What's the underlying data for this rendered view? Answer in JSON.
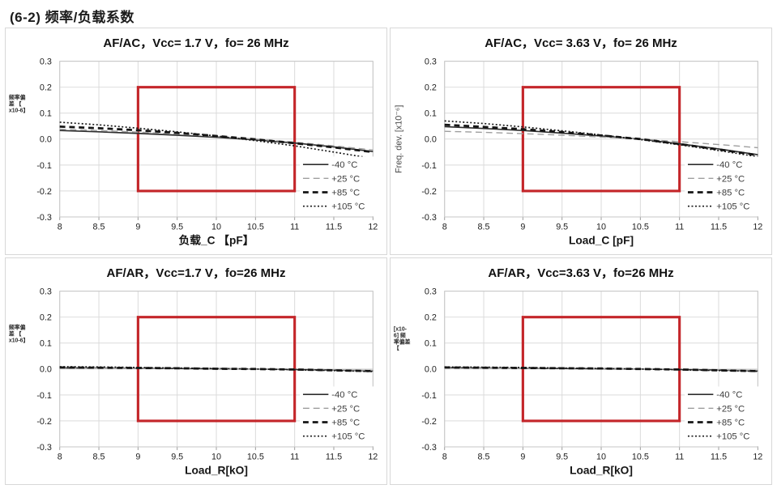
{
  "page_title": "(6-2)  频率/负载系数",
  "colors": {
    "spec_box": "#C4262A",
    "grid": "#DADADA",
    "plot_border": "#C6C6C6",
    "tick_text": "#222222",
    "legend_text": "#3D3D3D",
    "title_text": "#101010"
  },
  "legend": {
    "position": "inside-bottom-right",
    "items": [
      {
        "label": "-40 °C",
        "stroke": "#2E2E2E",
        "width": 1.7,
        "dash": ""
      },
      {
        "label": "+25 °C",
        "stroke": "#9E9E9E",
        "width": 1.4,
        "dash": "8 5"
      },
      {
        "label": "+85 °C",
        "stroke": "#151515",
        "width": 2.8,
        "dash": "7 5"
      },
      {
        "label": "+105 °C",
        "stroke": "#151515",
        "width": 1.7,
        "dash": "2 2.6"
      }
    ]
  },
  "chart_data": [
    {
      "type": "line",
      "title": "AF/AC，Vcc= 1.7 V，fo= 26 MHz",
      "xlabel": "负载_C 【pF】",
      "ylabel": "频率偏差【x10-6】",
      "ylabel_render": {
        "kind": "tiny-stack",
        "lines": [
          "频率偏",
          "差 【",
          "x10-6】"
        ],
        "y0": 58
      },
      "xlim": [
        8,
        12
      ],
      "ylim": [
        -0.3,
        0.3
      ],
      "grid": true,
      "x_ticks": [
        "8",
        "8.5",
        "9",
        "9.5",
        "10",
        "10.5",
        "11",
        "11.5",
        "12"
      ],
      "y_ticks": [
        "0.3",
        "0.2",
        "0.1",
        "0.0",
        "-0.1",
        "-0.2",
        "-0.3"
      ],
      "x": [
        8,
        8.5,
        9,
        9.5,
        10,
        10.5,
        11,
        11.5,
        12
      ],
      "spec_box": {
        "x": [
          9,
          11
        ],
        "y": [
          -0.2,
          0.2
        ]
      },
      "smudge": false,
      "series": [
        {
          "name": "-40 °C",
          "values": [
            0.033,
            0.028,
            0.022,
            0.015,
            0.007,
            -0.003,
            -0.015,
            -0.03,
            -0.048
          ]
        },
        {
          "name": "+25 °C",
          "values": [
            0.038,
            0.033,
            0.027,
            0.019,
            0.01,
            0.0,
            -0.012,
            -0.026,
            -0.042
          ]
        },
        {
          "name": "+85 °C",
          "values": [
            0.048,
            0.042,
            0.034,
            0.024,
            0.012,
            -0.001,
            -0.016,
            -0.032,
            -0.05
          ]
        },
        {
          "name": "+105 °C",
          "values": [
            0.065,
            0.055,
            0.042,
            0.028,
            0.012,
            -0.006,
            -0.026,
            -0.05,
            -0.075
          ]
        }
      ]
    },
    {
      "type": "line",
      "title": "AF/AC，Vcc= 3.63 V，fo= 26 MHz",
      "xlabel": "Load_C [pF]",
      "ylabel": "Freq. dev. [x10⁻⁶]",
      "ylabel_render": {
        "kind": "rotated"
      },
      "xlim": [
        8,
        12
      ],
      "ylim": [
        -0.3,
        0.3
      ],
      "grid": true,
      "x_ticks": [
        "8",
        "8.5",
        "9",
        "9.5",
        "10",
        "10.5",
        "11",
        "11.5",
        "12"
      ],
      "y_ticks": [
        "0.3",
        "0.2",
        "0.1",
        "0.0",
        "-0.1",
        "-0.2",
        "-0.3"
      ],
      "x": [
        8,
        8.5,
        9,
        9.5,
        10,
        10.5,
        11,
        11.5,
        12
      ],
      "spec_box": {
        "x": [
          9,
          11
        ],
        "y": [
          -0.2,
          0.2
        ]
      },
      "smudge": false,
      "series": [
        {
          "name": "-40 °C",
          "values": [
            0.048,
            0.041,
            0.033,
            0.023,
            0.012,
            0.0,
            -0.018,
            -0.038,
            -0.06
          ]
        },
        {
          "name": "+25 °C",
          "values": [
            0.03,
            0.026,
            0.021,
            0.015,
            0.008,
            0.0,
            -0.01,
            -0.021,
            -0.033
          ]
        },
        {
          "name": "+85 °C",
          "values": [
            0.055,
            0.047,
            0.038,
            0.027,
            0.014,
            0.0,
            -0.019,
            -0.04,
            -0.062
          ]
        },
        {
          "name": "+105 °C",
          "values": [
            0.07,
            0.06,
            0.047,
            0.032,
            0.016,
            -0.002,
            -0.022,
            -0.044,
            -0.068
          ]
        }
      ]
    },
    {
      "type": "line",
      "title": "AF/AR，Vcc=1.7 V，fo=26 MHz",
      "xlabel": "Load_R[kO]",
      "ylabel": "频率偏差【x10-6】",
      "ylabel_render": {
        "kind": "tiny-stack",
        "lines": [
          "频率偏",
          "差 【",
          "x10-6】"
        ],
        "y0": 58
      },
      "xlim": [
        8,
        12
      ],
      "ylim": [
        -0.3,
        0.3
      ],
      "grid": true,
      "x_ticks": [
        "8",
        "8.5",
        "9",
        "9.5",
        "10",
        "10.5",
        "11",
        "11.5",
        "12"
      ],
      "y_ticks": [
        "0.3",
        "0.2",
        "0.1",
        "0.0",
        "-0.1",
        "-0.2",
        "-0.3"
      ],
      "x": [
        8,
        8.5,
        9,
        9.5,
        10,
        10.5,
        11,
        11.5,
        12
      ],
      "spec_box": {
        "x": [
          9,
          11
        ],
        "y": [
          -0.2,
          0.2
        ]
      },
      "smudge": true,
      "series": [
        {
          "name": "-40 °C",
          "values": [
            0.004,
            0.004,
            0.003,
            0.002,
            0.001,
            0.0,
            -0.002,
            -0.004,
            -0.007
          ]
        },
        {
          "name": "+25 °C",
          "values": [
            0.003,
            0.003,
            0.002,
            0.002,
            0.001,
            0.0,
            -0.001,
            -0.003,
            -0.005
          ]
        },
        {
          "name": "+85 °C",
          "values": [
            0.006,
            0.005,
            0.004,
            0.003,
            0.001,
            0.0,
            -0.002,
            -0.005,
            -0.008
          ]
        },
        {
          "name": "+105 °C",
          "values": [
            0.009,
            0.008,
            0.006,
            0.004,
            0.002,
            0.0,
            -0.003,
            -0.006,
            -0.01
          ]
        }
      ]
    },
    {
      "type": "line",
      "title": "AF/AR，Vcc=3.63 V，fo=26 MHz",
      "xlabel": "Load_R[kO]",
      "ylabel": "[x10-6] 频率偏差【",
      "ylabel_render": {
        "kind": "tiny-stack",
        "lines": [
          "[x10-",
          "6] 频",
          "率偏差",
          "【"
        ],
        "y0": 60
      },
      "xlim": [
        8,
        12
      ],
      "ylim": [
        -0.3,
        0.3
      ],
      "grid": true,
      "x_ticks": [
        "8",
        "8.5",
        "9",
        "9.5",
        "10",
        "10.5",
        "11",
        "11.5",
        "12"
      ],
      "y_ticks": [
        "0.3",
        "0.2",
        "0.1",
        "0.0",
        "-0.1",
        "-0.2",
        "-0.3"
      ],
      "x": [
        8,
        8.5,
        9,
        9.5,
        10,
        10.5,
        11,
        11.5,
        12
      ],
      "spec_box": {
        "x": [
          9,
          11
        ],
        "y": [
          -0.2,
          0.2
        ]
      },
      "smudge": true,
      "series": [
        {
          "name": "-40 °C",
          "values": [
            0.005,
            0.004,
            0.003,
            0.002,
            0.001,
            0.0,
            -0.002,
            -0.004,
            -0.007
          ]
        },
        {
          "name": "+25 °C",
          "values": [
            0.004,
            0.003,
            0.003,
            0.002,
            0.001,
            0.0,
            -0.001,
            -0.003,
            -0.005
          ]
        },
        {
          "name": "+85 °C",
          "values": [
            0.006,
            0.005,
            0.004,
            0.003,
            0.002,
            0.0,
            -0.002,
            -0.005,
            -0.008
          ]
        },
        {
          "name": "+105 °C",
          "values": [
            0.008,
            0.007,
            0.006,
            0.004,
            0.002,
            0.0,
            -0.003,
            -0.006,
            -0.009
          ]
        }
      ]
    }
  ]
}
